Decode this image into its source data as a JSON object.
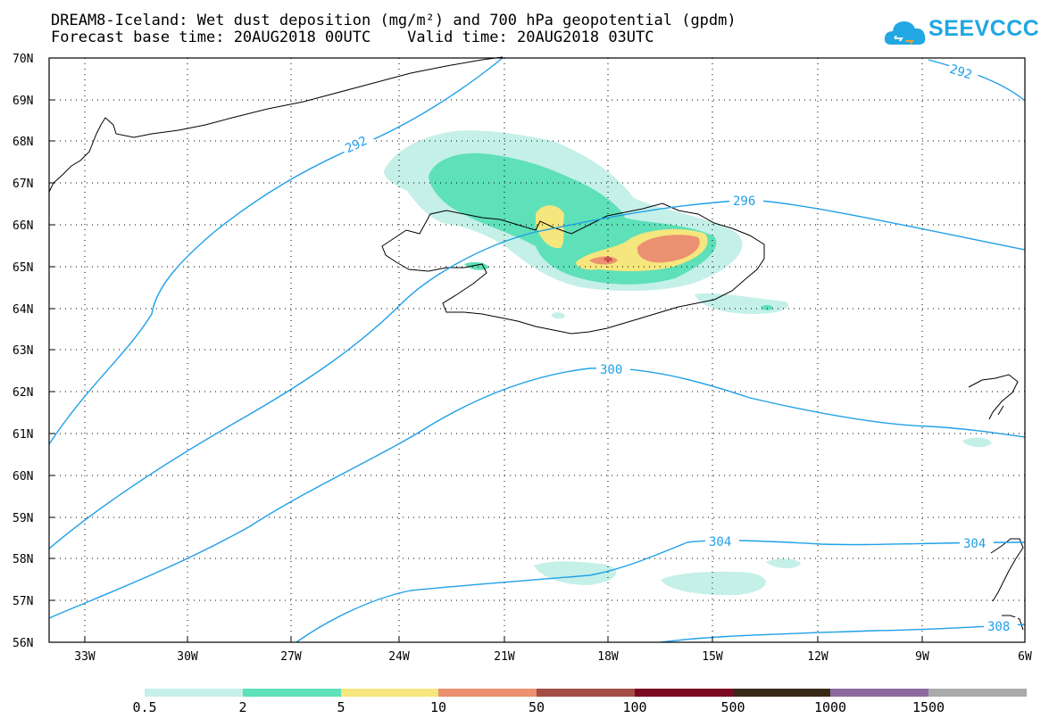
{
  "header": {
    "title_line1": "DREAM8-Iceland: Wet dust deposition (mg/m²) and 700 hPa geopotential (gpdm)",
    "title_line2": "Forecast base time: 20AUG2018 00UTC    Valid time: 20AUG2018 03UTC"
  },
  "logo": {
    "text": "SEEVCCC",
    "icon": "cloud-logo-icon",
    "color": "#21a7e2"
  },
  "map": {
    "projection": "lat-lon",
    "lat_range": [
      56,
      70
    ],
    "lon_range": [
      -34.4,
      -6
    ],
    "lat_labels": [
      "70N",
      "69N",
      "68N",
      "67N",
      "66N",
      "65N",
      "64N",
      "63N",
      "62N",
      "61N",
      "60N",
      "59N",
      "58N",
      "57N",
      "56N"
    ],
    "lon_labels": [
      "33W",
      "30W",
      "27W",
      "24W",
      "21W",
      "18W",
      "15W",
      "12W",
      "9W",
      "6W"
    ],
    "gridlines": "dotted",
    "contour_color": "#20a0e8",
    "contour_labels": [
      {
        "text": "292",
        "note": "upper right"
      },
      {
        "text": "292",
        "note": "west of Iceland"
      },
      {
        "text": "296"
      },
      {
        "text": "300"
      },
      {
        "text": "304",
        "note": "center"
      },
      {
        "text": "304",
        "note": "right"
      },
      {
        "text": "308"
      }
    ]
  },
  "colorbar": {
    "colors": [
      "#c4f0e8",
      "#5ee0b8",
      "#f5e67d",
      "#eb9070",
      "#a44d44",
      "#7a0a22",
      "#3a2817",
      "#8c6a9f",
      "#aaaaaa"
    ],
    "labels": [
      "0.5",
      "2",
      "5",
      "10",
      "50",
      "100",
      "500",
      "1000",
      "1500"
    ]
  }
}
